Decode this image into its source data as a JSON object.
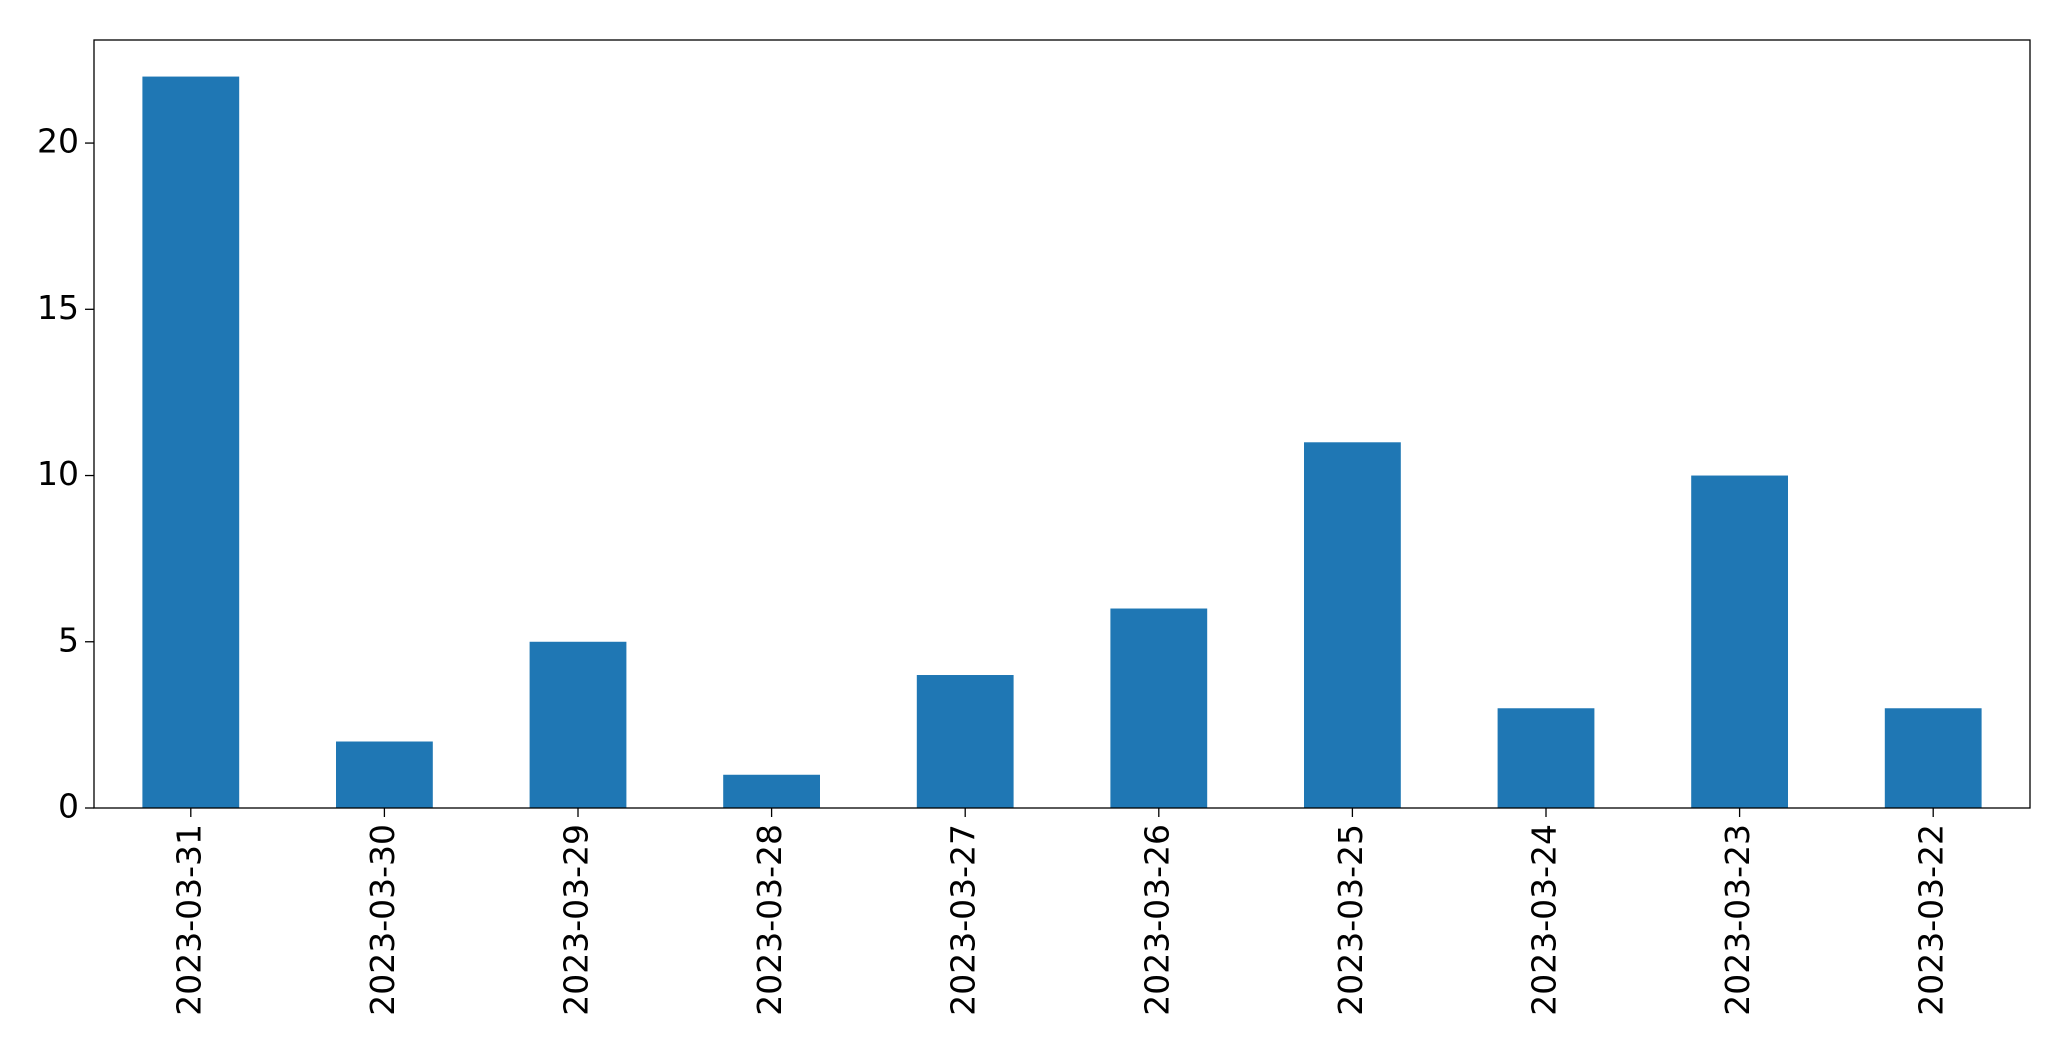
{
  "chart_data": {
    "type": "bar",
    "categories": [
      "2023-03-31",
      "2023-03-30",
      "2023-03-29",
      "2023-03-28",
      "2023-03-27",
      "2023-03-26",
      "2023-03-25",
      "2023-03-24",
      "2023-03-23",
      "2023-03-22"
    ],
    "values": [
      22,
      2,
      5,
      1,
      4,
      6,
      11,
      3,
      10,
      3
    ],
    "color": "#1f77b4",
    "ylim": [
      0,
      23.1
    ],
    "yticks": [
      0,
      5,
      10,
      15,
      20
    ],
    "grid": false
  }
}
